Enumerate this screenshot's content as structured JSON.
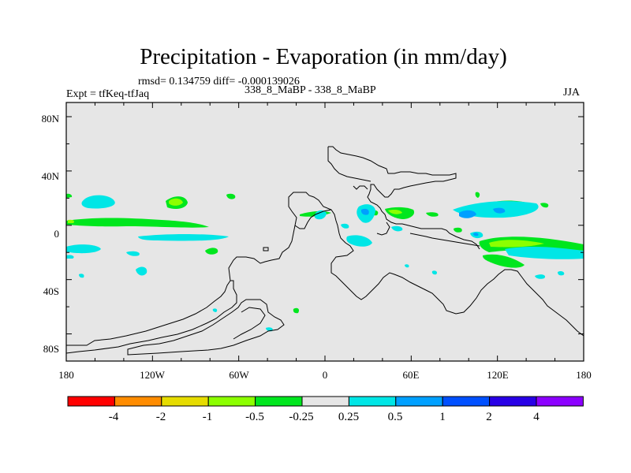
{
  "title": "Precipitation - Evaporation (in mm/day)",
  "stats": "rmsd= 0.134759 diff= -0.000139026",
  "left_label": "Expt = tfKeq-tfJaq",
  "center_label": "338_8_MaBP - 338_8_MaBP",
  "right_label": "JJA",
  "map": {
    "background_color": "#e6e6e6",
    "lat_ticks": [
      "80N",
      "40N",
      "0",
      "40S",
      "80S"
    ],
    "lon_ticks": [
      "180",
      "120W",
      "60W",
      "0",
      "60E",
      "120E",
      "180"
    ]
  },
  "colorbar": {
    "colors": [
      "#ff0000",
      "#ff8c00",
      "#e6dc00",
      "#8cff00",
      "#00e61e",
      "#e6e6e6",
      "#00e6e6",
      "#00a0ff",
      "#0050ff",
      "#2800e6",
      "#8c00ff"
    ],
    "labels": [
      "-4",
      "-2",
      "-1",
      "-0.5",
      "-0.25",
      "0.25",
      "0.5",
      "1",
      "2",
      "4"
    ]
  }
}
